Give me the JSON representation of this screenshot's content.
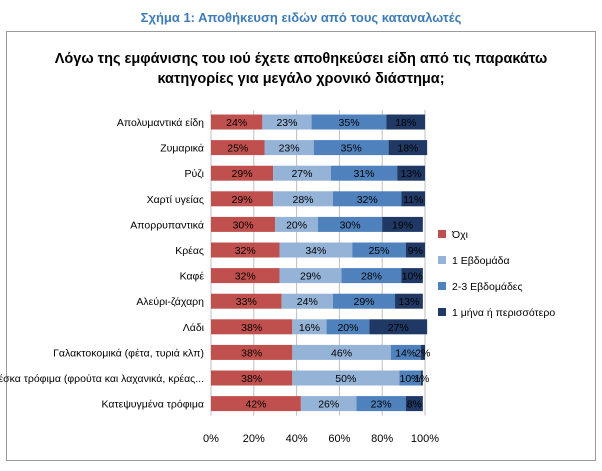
{
  "caption": "Σχήμα 1: Αποθήκευση ειδών από τους καταναλωτές",
  "chart_data": {
    "type": "bar",
    "orientation": "horizontal",
    "stacked": true,
    "title_lines": [
      "Λόγω της εμφάνισης του ιού έχετε αποθηκεύσει είδη από τις παρακάτω",
      "κατηγορίες για μεγάλο χρονικό διάστημα;"
    ],
    "categories": [
      "Απολυμαντικά είδη",
      "Ζυμαρικά",
      "Ρύζι",
      "Χαρτί υγείας",
      "Απορρυπαντικά",
      "Κρέας",
      "Καφέ",
      "Αλεύρι-ζάχαρη",
      "Λάδι",
      "Γαλακτοκομικά (φέτα, τυριά κλπ)",
      "Φρέσκα τρόφιμα (φρούτα και λαχανικά, κρέας...",
      "Κατεψυγμένα τρόφιμα"
    ],
    "series": [
      {
        "name": "Όχι",
        "color": "#c0504d",
        "values": [
          24,
          25,
          29,
          29,
          30,
          32,
          32,
          33,
          38,
          38,
          38,
          42
        ]
      },
      {
        "name": "1 Εβδομάδα",
        "color": "#95b3d7",
        "values": [
          23,
          23,
          27,
          28,
          20,
          34,
          29,
          24,
          16,
          46,
          50,
          26
        ]
      },
      {
        "name": "2-3 Εβδομάδες",
        "color": "#4f81bd",
        "values": [
          35,
          35,
          31,
          32,
          30,
          25,
          28,
          29,
          20,
          14,
          10,
          23
        ]
      },
      {
        "name": "1 μήνα ή περισσότερο",
        "color": "#1f3864",
        "values": [
          18,
          18,
          13,
          11,
          19,
          9,
          10,
          13,
          27,
          2,
          1,
          8
        ]
      }
    ],
    "data_labels": [
      [
        "24%",
        "23%",
        "35%",
        "18%"
      ],
      [
        "25%",
        "23%",
        "35%",
        "18%"
      ],
      [
        "29%",
        "27%",
        "31%",
        "13%"
      ],
      [
        "29%",
        "28%",
        "32%",
        "11%"
      ],
      [
        "30%",
        "20%",
        "30%",
        "19%"
      ],
      [
        "32%",
        "34%",
        "25%",
        "9%"
      ],
      [
        "32%",
        "29%",
        "28%",
        "10%"
      ],
      [
        "33%",
        "24%",
        "29%",
        "13%"
      ],
      [
        "38%",
        "16%",
        "20%",
        "27%"
      ],
      [
        "38%",
        "46%",
        "14%",
        "2%"
      ],
      [
        "38%",
        "50%",
        "10%",
        "1%"
      ],
      [
        "42%",
        "26%",
        "23%",
        "8%"
      ]
    ],
    "xlim": [
      0,
      100
    ],
    "x_ticks": [
      "0%",
      "20%",
      "40%",
      "60%",
      "80%",
      "100%"
    ],
    "grid": true,
    "legend_position": "right"
  }
}
